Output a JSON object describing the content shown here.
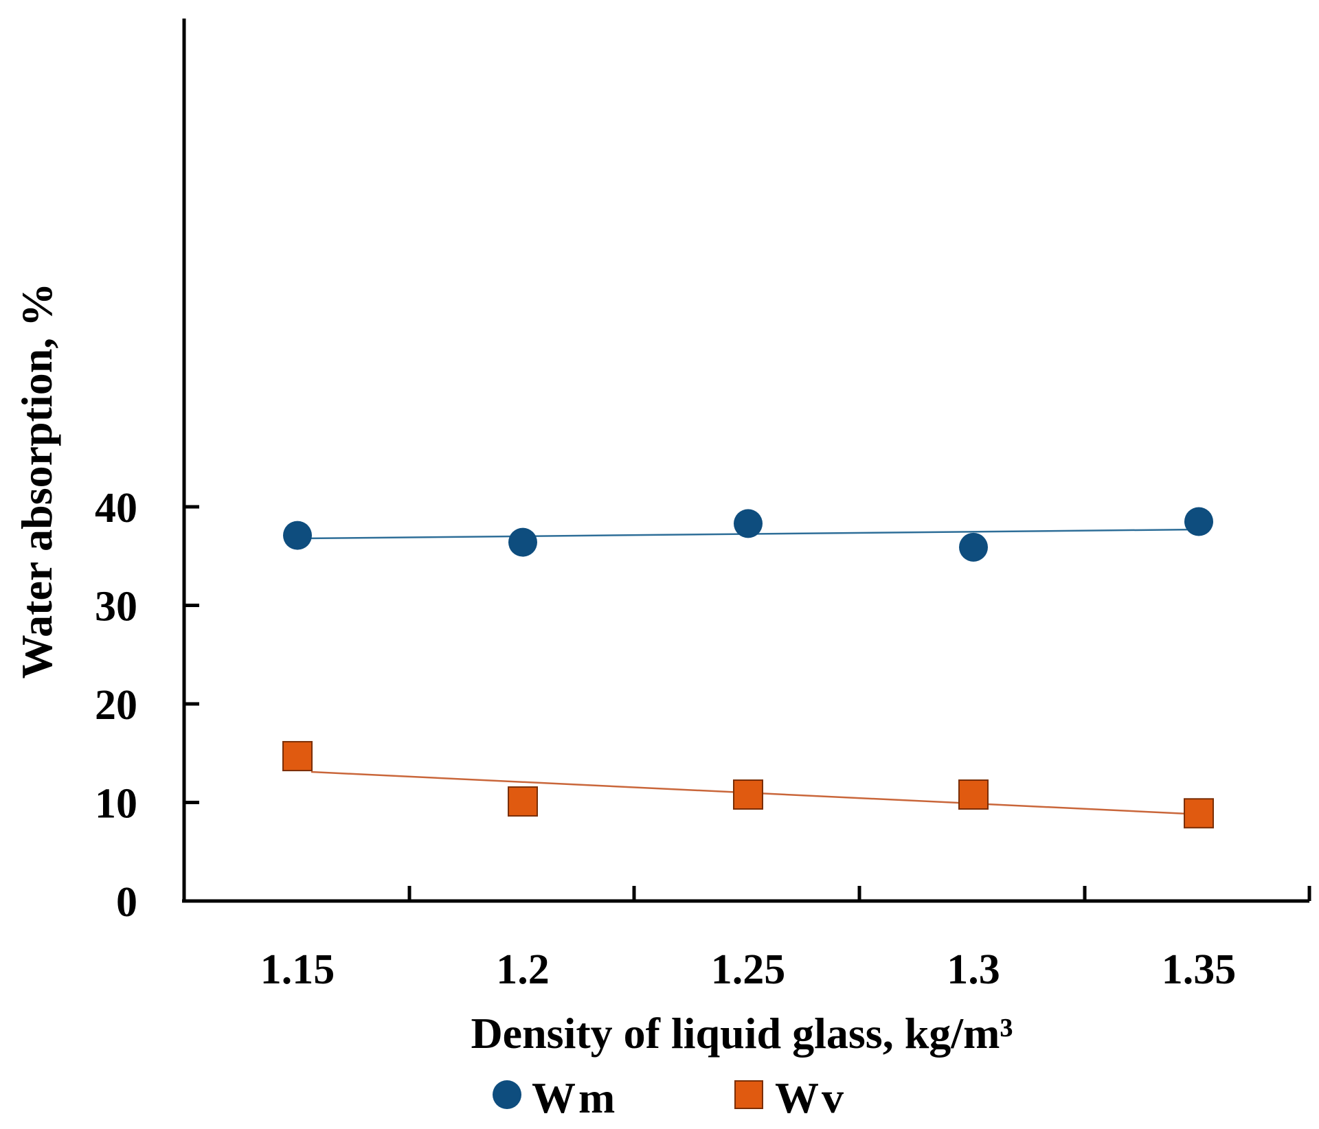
{
  "chart_data": {
    "type": "scatter",
    "title": "",
    "xlabel": "Density of liquid glass, kg/m³",
    "ylabel": "Water absorption, %",
    "x_categories": [
      "1.15",
      "1.2",
      "1.25",
      "1.3",
      "1.35"
    ],
    "y_ticks": [
      "0",
      "10",
      "20",
      "30",
      "40"
    ],
    "ylim": [
      0,
      40
    ],
    "grid": false,
    "legend_position": "bottom",
    "series": [
      {
        "name": "Wm",
        "marker": "circle",
        "color": "#0e4d7e",
        "trend_color": "#2e6e98",
        "values": [
          37.1,
          36.4,
          38.3,
          35.9,
          38.5
        ],
        "trendline": [
          36.8,
          37.7
        ]
      },
      {
        "name": "Wv",
        "marker": "square",
        "color": "#e05a10",
        "trend_color": "#c9663a",
        "values": [
          14.7,
          10.1,
          10.8,
          10.8,
          8.9
        ],
        "trendline": [
          13.1,
          8.8
        ]
      }
    ]
  }
}
